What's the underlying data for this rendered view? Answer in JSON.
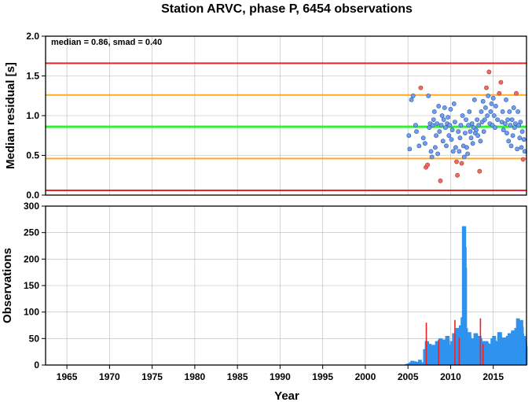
{
  "colors": {
    "limit_outer": "#e8242a",
    "limit_inner": "#ffaa22",
    "median_line": "#33ee33",
    "point_normal": "#6f9ff0",
    "point_outlier": "#f36b5e",
    "bar_normal": "#2f93ee",
    "bar_outlier": "#e8242a",
    "grid": "#b8b8b8"
  },
  "chart_data": [
    {
      "type": "scatter",
      "title": "Station ARVC, phase P, 6454 observations",
      "annotation": "median = 0.86, smad = 0.40",
      "xlabel": "",
      "ylabel": "Median residual [s]",
      "xlim": [
        1962.5,
        2018.9
      ],
      "ylim": [
        0,
        2
      ],
      "yticks": [
        "0.0",
        "0.5",
        "1.0",
        "1.5",
        "2.0"
      ],
      "grid": true,
      "median": 0.86,
      "inner_limits": [
        0.46,
        1.26
      ],
      "outer_limits": [
        0.06,
        1.66
      ],
      "points": [
        [
          2005.1,
          0.75
        ],
        [
          2005.2,
          0.58
        ],
        [
          2005.4,
          1.2
        ],
        [
          2005.6,
          1.25
        ],
        [
          2005.9,
          0.88
        ],
        [
          2006.0,
          0.8
        ],
        [
          2006.3,
          0.62
        ],
        [
          2006.5,
          1.35
        ],
        [
          2006.8,
          0.72
        ],
        [
          2007.0,
          0.65
        ],
        [
          2007.1,
          0.35
        ],
        [
          2007.3,
          0.38
        ],
        [
          2007.4,
          1.25
        ],
        [
          2007.5,
          0.85
        ],
        [
          2007.6,
          0.9
        ],
        [
          2007.7,
          0.55
        ],
        [
          2007.8,
          0.48
        ],
        [
          2007.9,
          0.88
        ],
        [
          2008.0,
          0.95
        ],
        [
          2008.1,
          1.05
        ],
        [
          2008.2,
          0.6
        ],
        [
          2008.3,
          0.75
        ],
        [
          2008.4,
          0.9
        ],
        [
          2008.5,
          0.52
        ],
        [
          2008.6,
          1.12
        ],
        [
          2008.7,
          0.8
        ],
        [
          2008.8,
          0.18
        ],
        [
          2008.9,
          0.88
        ],
        [
          2009.0,
          1.0
        ],
        [
          2009.1,
          0.68
        ],
        [
          2009.2,
          0.95
        ],
        [
          2009.3,
          1.1
        ],
        [
          2009.4,
          0.85
        ],
        [
          2009.5,
          0.62
        ],
        [
          2009.6,
          0.9
        ],
        [
          2009.7,
          0.98
        ],
        [
          2009.8,
          0.75
        ],
        [
          2009.9,
          0.88
        ],
        [
          2010.0,
          1.08
        ],
        [
          2010.1,
          0.7
        ],
        [
          2010.2,
          0.82
        ],
        [
          2010.3,
          0.55
        ],
        [
          2010.4,
          1.15
        ],
        [
          2010.5,
          0.92
        ],
        [
          2010.6,
          0.6
        ],
        [
          2010.7,
          0.42
        ],
        [
          2010.8,
          0.25
        ],
        [
          2010.9,
          0.8
        ],
        [
          2011.0,
          0.55
        ],
        [
          2011.1,
          0.72
        ],
        [
          2011.2,
          0.88
        ],
        [
          2011.3,
          0.4
        ],
        [
          2011.4,
          1.0
        ],
        [
          2011.5,
          0.62
        ],
        [
          2011.6,
          0.48
        ],
        [
          2011.7,
          0.78
        ],
        [
          2011.8,
          0.95
        ],
        [
          2011.9,
          0.6
        ],
        [
          2012.0,
          0.52
        ],
        [
          2012.1,
          0.88
        ],
        [
          2012.2,
          1.05
        ],
        [
          2012.3,
          0.8
        ],
        [
          2012.4,
          0.72
        ],
        [
          2012.5,
          0.9
        ],
        [
          2012.6,
          0.65
        ],
        [
          2012.7,
          0.85
        ],
        [
          2012.8,
          1.2
        ],
        [
          2012.9,
          0.78
        ],
        [
          2013.0,
          0.82
        ],
        [
          2013.1,
          0.95
        ],
        [
          2013.2,
          0.75
        ],
        [
          2013.3,
          0.88
        ],
        [
          2013.4,
          0.3
        ],
        [
          2013.5,
          0.68
        ],
        [
          2013.6,
          1.05
        ],
        [
          2013.7,
          0.92
        ],
        [
          2013.8,
          1.18
        ],
        [
          2013.9,
          0.8
        ],
        [
          2014.0,
          0.95
        ],
        [
          2014.1,
          1.1
        ],
        [
          2014.2,
          1.35
        ],
        [
          2014.3,
          1.0
        ],
        [
          2014.4,
          1.25
        ],
        [
          2014.5,
          1.55
        ],
        [
          2014.6,
          0.9
        ],
        [
          2014.7,
          1.05
        ],
        [
          2014.8,
          1.15
        ],
        [
          2014.9,
          0.88
        ],
        [
          2015.0,
          1.22
        ],
        [
          2015.1,
          1.0
        ],
        [
          2015.2,
          0.85
        ],
        [
          2015.3,
          1.12
        ],
        [
          2015.5,
          0.95
        ],
        [
          2015.7,
          1.28
        ],
        [
          2015.9,
          1.42
        ],
        [
          2016.0,
          0.92
        ],
        [
          2016.1,
          1.05
        ],
        [
          2016.2,
          0.82
        ],
        [
          2016.4,
          0.9
        ],
        [
          2016.5,
          1.2
        ],
        [
          2016.6,
          0.78
        ],
        [
          2016.7,
          0.95
        ],
        [
          2016.8,
          0.68
        ],
        [
          2016.9,
          1.05
        ],
        [
          2017.0,
          0.88
        ],
        [
          2017.1,
          0.62
        ],
        [
          2017.2,
          0.95
        ],
        [
          2017.3,
          0.75
        ],
        [
          2017.4,
          1.1
        ],
        [
          2017.5,
          0.85
        ],
        [
          2017.6,
          0.9
        ],
        [
          2017.7,
          1.28
        ],
        [
          2017.8,
          0.58
        ],
        [
          2017.9,
          1.05
        ],
        [
          2018.0,
          0.88
        ],
        [
          2018.1,
          0.72
        ],
        [
          2018.2,
          0.92
        ],
        [
          2018.3,
          0.6
        ],
        [
          2018.4,
          0.8
        ],
        [
          2018.5,
          0.45
        ],
        [
          2018.6,
          0.7
        ],
        [
          2018.7,
          0.55
        ]
      ]
    },
    {
      "type": "bar",
      "xlabel": "Year",
      "ylabel": "Observations",
      "xlim": [
        1962.5,
        2018.9
      ],
      "ylim": [
        0,
        300
      ],
      "xticks": [
        "1965",
        "1970",
        "1975",
        "1980",
        "1985",
        "1990",
        "1995",
        "2000",
        "2005",
        "2010",
        "2015"
      ],
      "yticks": [
        "0",
        "50",
        "100",
        "150",
        "200",
        "250",
        "300"
      ],
      "grid": true,
      "bar_width_years": 0.045,
      "bars": [
        [
          2004.9,
          2
        ],
        [
          2005.1,
          3
        ],
        [
          2005.3,
          5
        ],
        [
          2005.5,
          8
        ],
        [
          2005.8,
          7
        ],
        [
          2006.1,
          6
        ],
        [
          2006.4,
          10
        ],
        [
          2006.7,
          5
        ],
        [
          2007.0,
          30
        ],
        [
          2007.2,
          45
        ],
        [
          2007.4,
          40
        ],
        [
          2007.6,
          35
        ],
        [
          2007.8,
          22
        ],
        [
          2008.0,
          38
        ],
        [
          2008.2,
          30
        ],
        [
          2008.4,
          45
        ],
        [
          2008.6,
          40
        ],
        [
          2008.8,
          50
        ],
        [
          2009.0,
          35
        ],
        [
          2009.2,
          48
        ],
        [
          2009.4,
          42
        ],
        [
          2009.6,
          55
        ],
        [
          2009.8,
          38
        ],
        [
          2010.0,
          30
        ],
        [
          2010.2,
          45
        ],
        [
          2010.4,
          60
        ],
        [
          2010.6,
          40
        ],
        [
          2010.8,
          70
        ],
        [
          2011.0,
          55
        ],
        [
          2011.2,
          75
        ],
        [
          2011.3,
          50
        ],
        [
          2011.4,
          90
        ],
        [
          2011.55,
          262
        ],
        [
          2011.7,
          70
        ],
        [
          2011.9,
          55
        ],
        [
          2012.1,
          62
        ],
        [
          2012.3,
          48
        ],
        [
          2012.5,
          50
        ],
        [
          2012.7,
          45
        ],
        [
          2012.9,
          60
        ],
        [
          2013.1,
          40
        ],
        [
          2013.3,
          55
        ],
        [
          2013.5,
          50
        ],
        [
          2013.7,
          45
        ],
        [
          2013.9,
          38
        ],
        [
          2014.1,
          45
        ],
        [
          2014.3,
          42
        ],
        [
          2014.5,
          40
        ],
        [
          2014.7,
          35
        ],
        [
          2014.9,
          50
        ],
        [
          2015.1,
          55
        ],
        [
          2015.3,
          45
        ],
        [
          2015.5,
          38
        ],
        [
          2015.7,
          62
        ],
        [
          2015.9,
          50
        ],
        [
          2016.1,
          48
        ],
        [
          2016.3,
          52
        ],
        [
          2016.5,
          40
        ],
        [
          2016.7,
          55
        ],
        [
          2016.9,
          60
        ],
        [
          2017.1,
          48
        ],
        [
          2017.3,
          65
        ],
        [
          2017.5,
          50
        ],
        [
          2017.7,
          70
        ],
        [
          2017.9,
          88
        ],
        [
          2018.1,
          60
        ],
        [
          2018.3,
          85
        ],
        [
          2018.5,
          55
        ],
        [
          2018.7,
          50
        ]
      ],
      "outlier_bars": [
        [
          2007.15,
          80
        ],
        [
          2008.6,
          48
        ],
        [
          2010.5,
          85
        ],
        [
          2011.0,
          52
        ],
        [
          2013.5,
          88
        ],
        [
          2013.8,
          40
        ]
      ]
    }
  ]
}
